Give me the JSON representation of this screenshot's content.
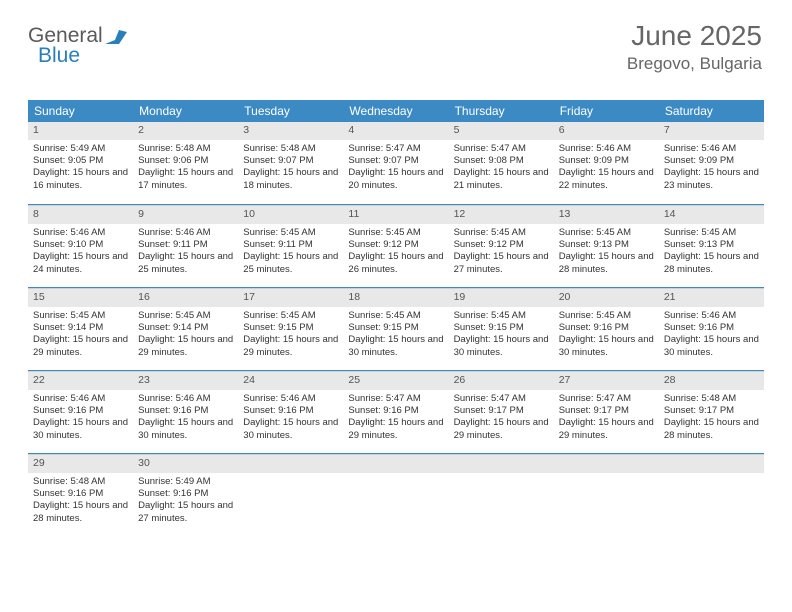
{
  "logo": {
    "text1": "General",
    "text2": "Blue"
  },
  "title": "June 2025",
  "location": "Bregovo, Bulgaria",
  "colors": {
    "header_bg": "#3b8ac4",
    "header_text": "#ffffff",
    "daynum_bg": "#e8e8e8",
    "border": "#3b8ac4",
    "text": "#333333",
    "title_color": "#666666"
  },
  "weekdays": [
    "Sunday",
    "Monday",
    "Tuesday",
    "Wednesday",
    "Thursday",
    "Friday",
    "Saturday"
  ],
  "start_offset": 0,
  "days": [
    {
      "n": 1,
      "sr": "5:49 AM",
      "ss": "9:05 PM",
      "dl": "15 hours and 16 minutes."
    },
    {
      "n": 2,
      "sr": "5:48 AM",
      "ss": "9:06 PM",
      "dl": "15 hours and 17 minutes."
    },
    {
      "n": 3,
      "sr": "5:48 AM",
      "ss": "9:07 PM",
      "dl": "15 hours and 18 minutes."
    },
    {
      "n": 4,
      "sr": "5:47 AM",
      "ss": "9:07 PM",
      "dl": "15 hours and 20 minutes."
    },
    {
      "n": 5,
      "sr": "5:47 AM",
      "ss": "9:08 PM",
      "dl": "15 hours and 21 minutes."
    },
    {
      "n": 6,
      "sr": "5:46 AM",
      "ss": "9:09 PM",
      "dl": "15 hours and 22 minutes."
    },
    {
      "n": 7,
      "sr": "5:46 AM",
      "ss": "9:09 PM",
      "dl": "15 hours and 23 minutes."
    },
    {
      "n": 8,
      "sr": "5:46 AM",
      "ss": "9:10 PM",
      "dl": "15 hours and 24 minutes."
    },
    {
      "n": 9,
      "sr": "5:46 AM",
      "ss": "9:11 PM",
      "dl": "15 hours and 25 minutes."
    },
    {
      "n": 10,
      "sr": "5:45 AM",
      "ss": "9:11 PM",
      "dl": "15 hours and 25 minutes."
    },
    {
      "n": 11,
      "sr": "5:45 AM",
      "ss": "9:12 PM",
      "dl": "15 hours and 26 minutes."
    },
    {
      "n": 12,
      "sr": "5:45 AM",
      "ss": "9:12 PM",
      "dl": "15 hours and 27 minutes."
    },
    {
      "n": 13,
      "sr": "5:45 AM",
      "ss": "9:13 PM",
      "dl": "15 hours and 28 minutes."
    },
    {
      "n": 14,
      "sr": "5:45 AM",
      "ss": "9:13 PM",
      "dl": "15 hours and 28 minutes."
    },
    {
      "n": 15,
      "sr": "5:45 AM",
      "ss": "9:14 PM",
      "dl": "15 hours and 29 minutes."
    },
    {
      "n": 16,
      "sr": "5:45 AM",
      "ss": "9:14 PM",
      "dl": "15 hours and 29 minutes."
    },
    {
      "n": 17,
      "sr": "5:45 AM",
      "ss": "9:15 PM",
      "dl": "15 hours and 29 minutes."
    },
    {
      "n": 18,
      "sr": "5:45 AM",
      "ss": "9:15 PM",
      "dl": "15 hours and 30 minutes."
    },
    {
      "n": 19,
      "sr": "5:45 AM",
      "ss": "9:15 PM",
      "dl": "15 hours and 30 minutes."
    },
    {
      "n": 20,
      "sr": "5:45 AM",
      "ss": "9:16 PM",
      "dl": "15 hours and 30 minutes."
    },
    {
      "n": 21,
      "sr": "5:46 AM",
      "ss": "9:16 PM",
      "dl": "15 hours and 30 minutes."
    },
    {
      "n": 22,
      "sr": "5:46 AM",
      "ss": "9:16 PM",
      "dl": "15 hours and 30 minutes."
    },
    {
      "n": 23,
      "sr": "5:46 AM",
      "ss": "9:16 PM",
      "dl": "15 hours and 30 minutes."
    },
    {
      "n": 24,
      "sr": "5:46 AM",
      "ss": "9:16 PM",
      "dl": "15 hours and 30 minutes."
    },
    {
      "n": 25,
      "sr": "5:47 AM",
      "ss": "9:16 PM",
      "dl": "15 hours and 29 minutes."
    },
    {
      "n": 26,
      "sr": "5:47 AM",
      "ss": "9:17 PM",
      "dl": "15 hours and 29 minutes."
    },
    {
      "n": 27,
      "sr": "5:47 AM",
      "ss": "9:17 PM",
      "dl": "15 hours and 29 minutes."
    },
    {
      "n": 28,
      "sr": "5:48 AM",
      "ss": "9:17 PM",
      "dl": "15 hours and 28 minutes."
    },
    {
      "n": 29,
      "sr": "5:48 AM",
      "ss": "9:16 PM",
      "dl": "15 hours and 28 minutes."
    },
    {
      "n": 30,
      "sr": "5:49 AM",
      "ss": "9:16 PM",
      "dl": "15 hours and 27 minutes."
    }
  ],
  "labels": {
    "sunrise": "Sunrise:",
    "sunset": "Sunset:",
    "daylight": "Daylight:"
  }
}
